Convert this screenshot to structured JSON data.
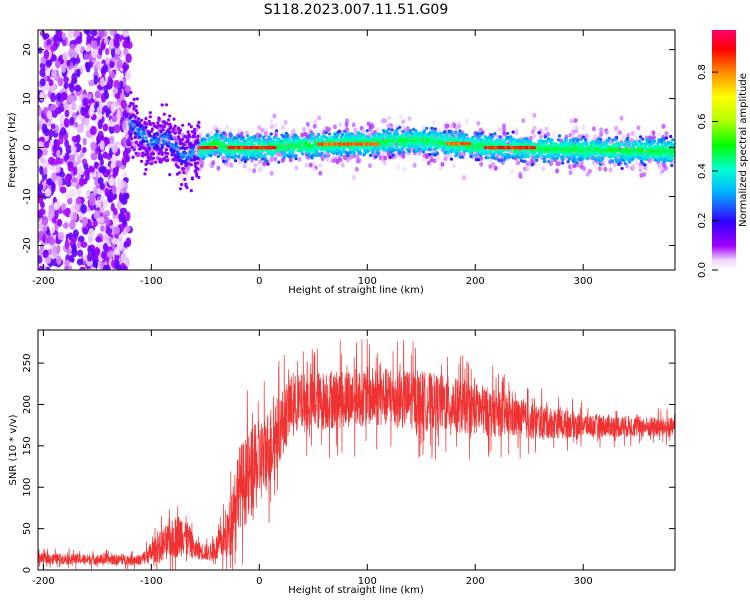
{
  "title": "S118.2023.007.11.51.G09",
  "chart_data": [
    {
      "type": "heatmap",
      "xlabel": "Height of straight line (km)",
      "ylabel": "Frequency (Hz)",
      "xlim": [
        -205,
        385
      ],
      "ylim": [
        -25,
        24
      ],
      "xticks": [
        -200,
        -100,
        0,
        100,
        200,
        300
      ],
      "yticks": [
        -20,
        -10,
        0,
        10,
        20
      ],
      "colorbar": {
        "label": "Normalized spectral amplitude",
        "range": [
          0,
          0.97
        ],
        "ticks": [
          "0.0",
          "0.2",
          "0.4",
          "0.6",
          "0.8"
        ],
        "colormap": "hsv-like (magenta-blue-cyan-green-yellow-red)"
      },
      "ridge": [
        {
          "x": -120,
          "y": 5
        },
        {
          "x": -100,
          "y": 1
        },
        {
          "x": -85,
          "y": 2
        },
        {
          "x": -70,
          "y": -2
        },
        {
          "x": -60,
          "y": -1
        },
        {
          "x": -50,
          "y": 0
        },
        {
          "x": -40,
          "y": 1
        },
        {
          "x": -30,
          "y": 0
        },
        {
          "x": 0,
          "y": 0
        },
        {
          "x": 50,
          "y": 0.5
        },
        {
          "x": 100,
          "y": 1
        },
        {
          "x": 150,
          "y": 1.5
        },
        {
          "x": 170,
          "y": 1
        },
        {
          "x": 200,
          "y": 0.3
        },
        {
          "x": 230,
          "y": 0
        },
        {
          "x": 300,
          "y": -0.5
        },
        {
          "x": 385,
          "y": -0.8
        }
      ],
      "hot_segments": [
        {
          "x0": -55,
          "x1": -40,
          "y": 0,
          "level": 0.95
        },
        {
          "x0": -28,
          "x1": 15,
          "y": 0,
          "level": 0.95
        },
        {
          "x0": 55,
          "x1": 110,
          "y": 0.7,
          "level": 0.9
        },
        {
          "x0": 175,
          "x1": 195,
          "y": 0.8,
          "level": 0.9
        },
        {
          "x0": 210,
          "x1": 255,
          "y": 0,
          "level": 0.95
        }
      ],
      "grid": false,
      "legend": "none"
    },
    {
      "type": "line",
      "xlabel": "Height of straight line (km)",
      "ylabel": "SNR (10 * v/v)",
      "xlim": [
        -205,
        385
      ],
      "ylim": [
        0,
        290
      ],
      "xticks": [
        -200,
        -100,
        0,
        100,
        200,
        300
      ],
      "yticks": [
        0,
        50,
        100,
        150,
        200,
        250
      ],
      "series": [
        {
          "color": "#f03232",
          "envelope": [
            {
              "x": -205,
              "mean": 14,
              "spread": 8
            },
            {
              "x": -110,
              "mean": 12,
              "spread": 8
            },
            {
              "x": -90,
              "mean": 30,
              "spread": 25
            },
            {
              "x": -70,
              "mean": 45,
              "spread": 35
            },
            {
              "x": -60,
              "mean": 25,
              "spread": 15
            },
            {
              "x": -45,
              "mean": 20,
              "spread": 12
            },
            {
              "x": -30,
              "mean": 40,
              "spread": 35
            },
            {
              "x": -20,
              "mean": 100,
              "spread": 60
            },
            {
              "x": -10,
              "mean": 110,
              "spread": 70
            },
            {
              "x": 10,
              "mean": 150,
              "spread": 60
            },
            {
              "x": 30,
              "mean": 200,
              "spread": 45
            },
            {
              "x": 60,
              "mean": 205,
              "spread": 45
            },
            {
              "x": 100,
              "mean": 210,
              "spread": 45
            },
            {
              "x": 150,
              "mean": 205,
              "spread": 45
            },
            {
              "x": 200,
              "mean": 195,
              "spread": 40
            },
            {
              "x": 250,
              "mean": 180,
              "spread": 28
            },
            {
              "x": 300,
              "mean": 175,
              "spread": 18
            },
            {
              "x": 385,
              "mean": 172,
              "spread": 15
            }
          ]
        }
      ],
      "grid": false,
      "legend": "none"
    }
  ]
}
